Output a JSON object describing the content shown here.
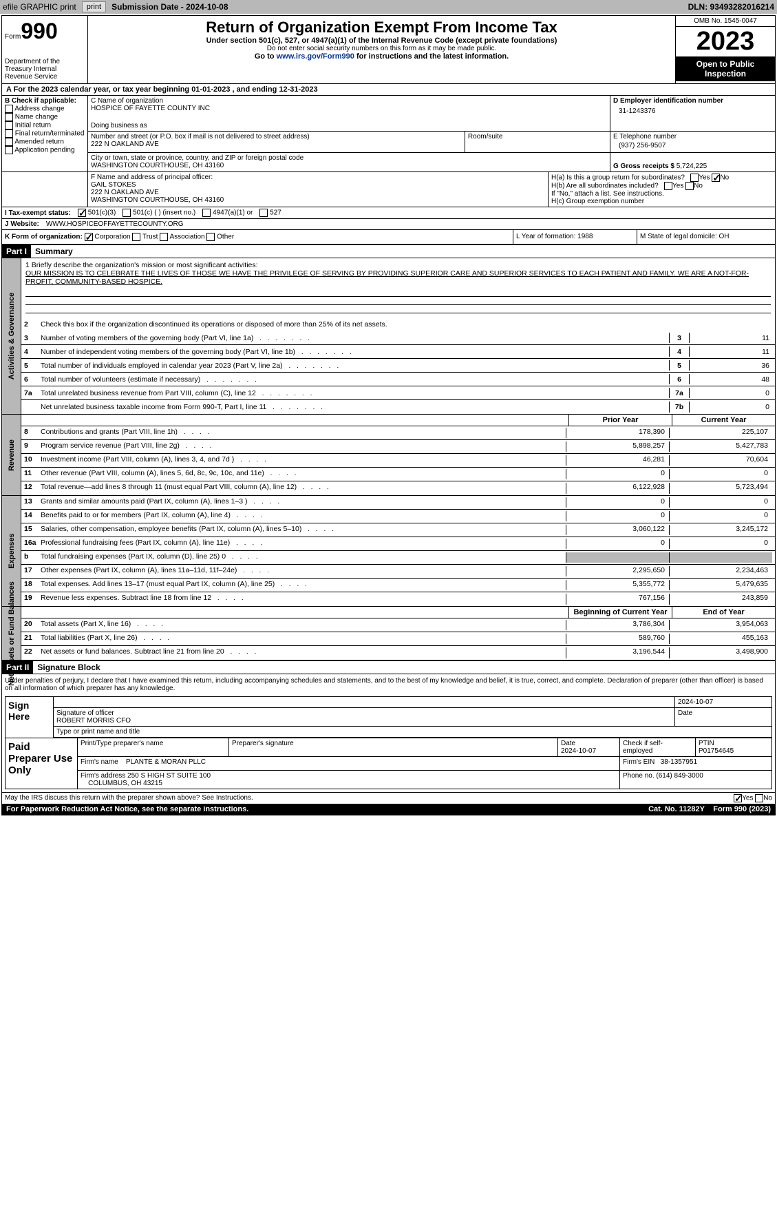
{
  "topbar": {
    "efile": "efile GRAPHIC print",
    "submission": "Submission Date - 2024-10-08",
    "dln": "DLN: 93493282016214"
  },
  "header": {
    "form_prefix": "Form",
    "form_number": "990",
    "dept": "Department of the Treasury Internal Revenue Service",
    "title": "Return of Organization Exempt From Income Tax",
    "sub1": "Under section 501(c), 527, or 4947(a)(1) of the Internal Revenue Code (except private foundations)",
    "sub2": "Do not enter social security numbers on this form as it may be made public.",
    "sub3": "Go to www.irs.gov/Form990 for instructions and the latest information.",
    "omb": "OMB No. 1545-0047",
    "year": "2023",
    "open": "Open to Public Inspection"
  },
  "row_a": "A For the 2023 calendar year, or tax year beginning 01-01-2023   , and ending 12-31-2023",
  "box_b": {
    "title": "B Check if applicable:",
    "items": [
      "Address change",
      "Name change",
      "Initial return",
      "Final return/terminated",
      "Amended return",
      "Application pending"
    ]
  },
  "box_c": {
    "name_lbl": "C Name of organization",
    "name": "HOSPICE OF FAYETTE COUNTY INC",
    "dba_lbl": "Doing business as",
    "street_lbl": "Number and street (or P.O. box if mail is not delivered to street address)",
    "street": "222 N OAKLAND AVE",
    "room_lbl": "Room/suite",
    "city_lbl": "City or town, state or province, country, and ZIP or foreign postal code",
    "city": "WASHINGTON COURTHOUSE, OH  43160"
  },
  "box_d": {
    "lbl": "D Employer identification number",
    "val": "31-1243376"
  },
  "box_e": {
    "lbl": "E Telephone number",
    "val": "(937) 256-9507"
  },
  "box_g": {
    "lbl": "G Gross receipts $",
    "val": "5,724,225"
  },
  "box_f": {
    "lbl": "F Name and address of principal officer:",
    "name": "GAIL STOKES",
    "addr1": "222 N OAKLAND AVE",
    "addr2": "WASHINGTON COURTHOUSE, OH  43160"
  },
  "box_h": {
    "ha": "H(a)  Is this a group return for subordinates?",
    "hb": "H(b)  Are all subordinates included?",
    "hb_note": "If \"No,\" attach a list. See instructions.",
    "hc": "H(c)  Group exemption number"
  },
  "row_i": {
    "lbl": "I   Tax-exempt status:",
    "opts": [
      "501(c)(3)",
      "501(c) (  ) (insert no.)",
      "4947(a)(1) or",
      "527"
    ]
  },
  "row_j": {
    "lbl": "J   Website:",
    "val": "WWW.HOSPICEOFFAYETTECOUNTY.ORG"
  },
  "row_k": {
    "k1_lbl": "K Form of organization:",
    "k1_opts": [
      "Corporation",
      "Trust",
      "Association",
      "Other"
    ],
    "k2": "L Year of formation: 1988",
    "k3": "M State of legal domicile: OH"
  },
  "part1": {
    "hdr": "Part I",
    "title": "Summary"
  },
  "mission": {
    "lbl": "1   Briefly describe the organization's mission or most significant activities:",
    "text": "OUR MISSION IS TO CELEBRATE THE LIVES OF THOSE WE HAVE THE PRIVILEGE OF SERVING BY PROVIDING SUPERIOR CARE AND SUPERIOR SERVICES TO EACH PATIENT AND FAMILY. WE ARE A NOT-FOR-PROFIT, COMMUNITY-BASED HOSPICE."
  },
  "line2_text": "Check this box       if the organization discontinued its operations or disposed of more than 25% of its net assets.",
  "sides": {
    "ag": "Activities & Governance",
    "rev": "Revenue",
    "exp": "Expenses",
    "net": "Net Assets or Fund Balances"
  },
  "gov_lines": [
    {
      "n": "3",
      "d": "Number of voting members of the governing body (Part VI, line 1a)",
      "box": "3",
      "v": "11"
    },
    {
      "n": "4",
      "d": "Number of independent voting members of the governing body (Part VI, line 1b)",
      "box": "4",
      "v": "11"
    },
    {
      "n": "5",
      "d": "Total number of individuals employed in calendar year 2023 (Part V, line 2a)",
      "box": "5",
      "v": "36"
    },
    {
      "n": "6",
      "d": "Total number of volunteers (estimate if necessary)",
      "box": "6",
      "v": "48"
    },
    {
      "n": "7a",
      "d": "Total unrelated business revenue from Part VIII, column (C), line 12",
      "box": "7a",
      "v": "0"
    },
    {
      "n": "",
      "d": "Net unrelated business taxable income from Form 990-T, Part I, line 11",
      "box": "7b",
      "v": "0"
    }
  ],
  "col_hdrs": {
    "prior": "Prior Year",
    "current": "Current Year",
    "begin": "Beginning of Current Year",
    "end": "End of Year"
  },
  "rev_lines": [
    {
      "n": "8",
      "d": "Contributions and grants (Part VIII, line 1h)",
      "v1": "178,390",
      "v2": "225,107"
    },
    {
      "n": "9",
      "d": "Program service revenue (Part VIII, line 2g)",
      "v1": "5,898,257",
      "v2": "5,427,783"
    },
    {
      "n": "10",
      "d": "Investment income (Part VIII, column (A), lines 3, 4, and 7d )",
      "v1": "46,281",
      "v2": "70,604"
    },
    {
      "n": "11",
      "d": "Other revenue (Part VIII, column (A), lines 5, 6d, 8c, 9c, 10c, and 11e)",
      "v1": "0",
      "v2": "0"
    },
    {
      "n": "12",
      "d": "Total revenue—add lines 8 through 11 (must equal Part VIII, column (A), line 12)",
      "v1": "6,122,928",
      "v2": "5,723,494"
    }
  ],
  "exp_lines": [
    {
      "n": "13",
      "d": "Grants and similar amounts paid (Part IX, column (A), lines 1–3 )",
      "v1": "0",
      "v2": "0"
    },
    {
      "n": "14",
      "d": "Benefits paid to or for members (Part IX, column (A), line 4)",
      "v1": "0",
      "v2": "0"
    },
    {
      "n": "15",
      "d": "Salaries, other compensation, employee benefits (Part IX, column (A), lines 5–10)",
      "v1": "3,060,122",
      "v2": "3,245,172"
    },
    {
      "n": "16a",
      "d": "Professional fundraising fees (Part IX, column (A), line 11e)",
      "v1": "0",
      "v2": "0"
    },
    {
      "n": "b",
      "d": "Total fundraising expenses (Part IX, column (D), line 25) 0",
      "v1": "",
      "v2": "",
      "shaded": true
    },
    {
      "n": "17",
      "d": "Other expenses (Part IX, column (A), lines 11a–11d, 11f–24e)",
      "v1": "2,295,650",
      "v2": "2,234,463"
    },
    {
      "n": "18",
      "d": "Total expenses. Add lines 13–17 (must equal Part IX, column (A), line 25)",
      "v1": "5,355,772",
      "v2": "5,479,635"
    },
    {
      "n": "19",
      "d": "Revenue less expenses. Subtract line 18 from line 12",
      "v1": "767,156",
      "v2": "243,859"
    }
  ],
  "net_lines": [
    {
      "n": "20",
      "d": "Total assets (Part X, line 16)",
      "v1": "3,786,304",
      "v2": "3,954,063"
    },
    {
      "n": "21",
      "d": "Total liabilities (Part X, line 26)",
      "v1": "589,760",
      "v2": "455,163"
    },
    {
      "n": "22",
      "d": "Net assets or fund balances. Subtract line 21 from line 20",
      "v1": "3,196,544",
      "v2": "3,498,900"
    }
  ],
  "part2": {
    "hdr": "Part II",
    "title": "Signature Block"
  },
  "sig": {
    "declaration": "Under penalties of perjury, I declare that I have examined this return, including accompanying schedules and statements, and to the best of my knowledge and belief, it is true, correct, and complete. Declaration of preparer (other than officer) is based on all information of which preparer has any knowledge.",
    "sign_here": "Sign Here",
    "sig_lbl": "Signature of officer",
    "date": "2024-10-07",
    "officer": "ROBERT MORRIS CFO",
    "type_lbl": "Type or print name and title"
  },
  "prep": {
    "title": "Paid Preparer Use Only",
    "h1": "Print/Type preparer's name",
    "h2": "Preparer's signature",
    "h3": "Date",
    "date": "2024-10-07",
    "h4": "Check        if self-employed",
    "h5": "PTIN",
    "ptin": "P01754645",
    "firm_lbl": "Firm's name",
    "firm": "PLANTE & MORAN PLLC",
    "ein_lbl": "Firm's EIN",
    "ein": "38-1357951",
    "addr_lbl": "Firm's address",
    "addr1": "250 S HIGH ST SUITE 100",
    "addr2": "COLUMBUS, OH  43215",
    "phone_lbl": "Phone no.",
    "phone": "(614) 849-3000"
  },
  "discuss": "May the IRS discuss this return with the preparer shown above? See Instructions.",
  "footer": {
    "left": "For Paperwork Reduction Act Notice, see the separate instructions.",
    "mid": "Cat. No. 11282Y",
    "right": "Form 990 (2023)"
  }
}
